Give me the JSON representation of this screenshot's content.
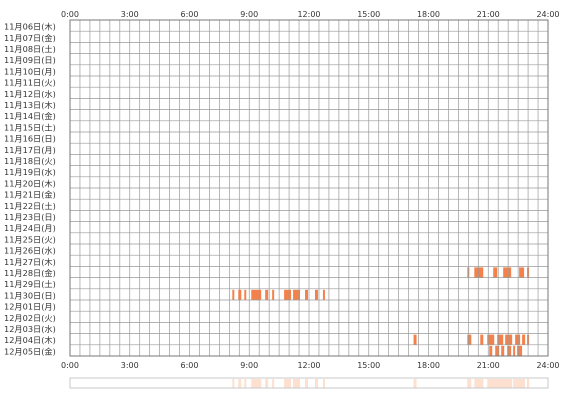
{
  "chart_data": {
    "type": "heatmap",
    "description_of_axis": "hour of day",
    "x_ticks": [
      "0:00",
      "3:00",
      "6:00",
      "9:00",
      "12:00",
      "15:00",
      "18:00",
      "21:00",
      "24:00"
    ],
    "x_range_hours": [
      0,
      24
    ],
    "grid": true,
    "rows": [
      {
        "label": "11月06日(木)",
        "intervals": []
      },
      {
        "label": "11月07日(金)",
        "intervals": []
      },
      {
        "label": "11月08日(土)",
        "intervals": []
      },
      {
        "label": "11月09日(日)",
        "intervals": []
      },
      {
        "label": "11月10日(月)",
        "intervals": []
      },
      {
        "label": "11月11日(火)",
        "intervals": []
      },
      {
        "label": "11月12日(水)",
        "intervals": []
      },
      {
        "label": "11月13日(木)",
        "intervals": []
      },
      {
        "label": "11月14日(金)",
        "intervals": []
      },
      {
        "label": "11月15日(土)",
        "intervals": []
      },
      {
        "label": "11月16日(日)",
        "intervals": []
      },
      {
        "label": "11月17日(月)",
        "intervals": []
      },
      {
        "label": "11月18日(火)",
        "intervals": []
      },
      {
        "label": "11月19日(水)",
        "intervals": []
      },
      {
        "label": "11月20日(木)",
        "intervals": []
      },
      {
        "label": "11月21日(金)",
        "intervals": []
      },
      {
        "label": "11月22日(土)",
        "intervals": []
      },
      {
        "label": "11月23日(日)",
        "intervals": []
      },
      {
        "label": "11月24日(月)",
        "intervals": []
      },
      {
        "label": "11月25日(火)",
        "intervals": []
      },
      {
        "label": "11月26日(水)",
        "intervals": []
      },
      {
        "label": "11月27日(木)",
        "intervals": []
      },
      {
        "label": "11月28日(金)",
        "intervals": [
          [
            19.95,
            20.05
          ],
          [
            20.3,
            20.75
          ],
          [
            21.25,
            21.45
          ],
          [
            21.75,
            22.15
          ],
          [
            22.55,
            22.8
          ],
          [
            22.95,
            23.05
          ]
        ]
      },
      {
        "label": "11月29日(土)",
        "intervals": []
      },
      {
        "label": "11月30日(日)",
        "intervals": [
          [
            8.15,
            8.25
          ],
          [
            8.45,
            8.6
          ],
          [
            8.75,
            8.85
          ],
          [
            9.1,
            9.6
          ],
          [
            9.8,
            9.95
          ],
          [
            10.15,
            10.25
          ],
          [
            10.75,
            11.1
          ],
          [
            11.2,
            11.55
          ],
          [
            11.8,
            11.95
          ],
          [
            12.3,
            12.45
          ],
          [
            12.7,
            12.8
          ]
        ]
      },
      {
        "label": "12月01日(月)",
        "intervals": []
      },
      {
        "label": "12月02日(火)",
        "intervals": []
      },
      {
        "label": "12月03日(水)",
        "intervals": []
      },
      {
        "label": "12月04日(木)",
        "intervals": [
          [
            17.25,
            17.4
          ],
          [
            19.95,
            20.15
          ],
          [
            20.6,
            20.75
          ],
          [
            20.95,
            21.3
          ],
          [
            21.45,
            21.75
          ],
          [
            21.85,
            22.2
          ],
          [
            22.35,
            22.6
          ],
          [
            22.7,
            22.85
          ],
          [
            22.95,
            23.05
          ]
        ]
      },
      {
        "label": "12月05日(金)",
        "intervals": [
          [
            21.05,
            21.2
          ],
          [
            21.35,
            21.55
          ],
          [
            21.65,
            21.8
          ],
          [
            21.95,
            22.15
          ],
          [
            22.25,
            22.35
          ],
          [
            22.45,
            22.7
          ]
        ]
      }
    ],
    "colors": {
      "activity": "#f5814a",
      "grid": "#9a9a9a",
      "border": "#777777",
      "summary_strip": "#fde0cf"
    }
  }
}
